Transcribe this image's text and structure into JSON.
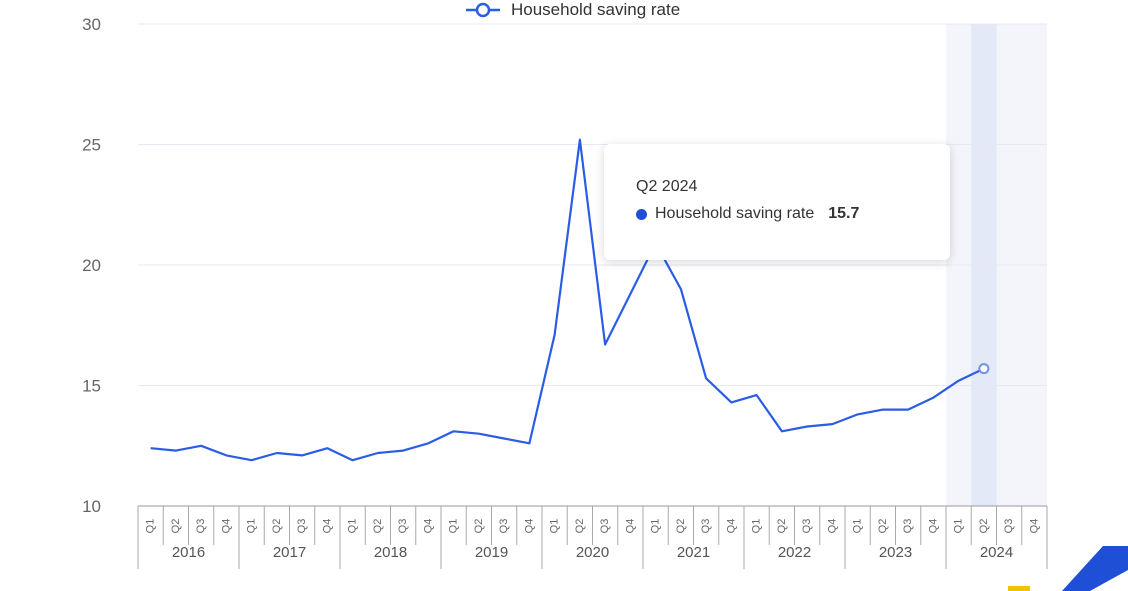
{
  "chart_data": {
    "type": "line",
    "title": "",
    "xlabel": "",
    "ylabel": "",
    "ylim": [
      10,
      30
    ],
    "yticks": [
      10,
      15,
      20,
      25,
      30
    ],
    "grid": true,
    "legend_position": "top",
    "quarter_labels": [
      "Q1",
      "Q2",
      "Q3",
      "Q4"
    ],
    "years": [
      "2016",
      "2017",
      "2018",
      "2019",
      "2020",
      "2021",
      "2022",
      "2023",
      "2024"
    ],
    "x": [
      "Q1 2016",
      "Q2 2016",
      "Q3 2016",
      "Q4 2016",
      "Q1 2017",
      "Q2 2017",
      "Q3 2017",
      "Q4 2017",
      "Q1 2018",
      "Q2 2018",
      "Q3 2018",
      "Q4 2018",
      "Q1 2019",
      "Q2 2019",
      "Q3 2019",
      "Q4 2019",
      "Q1 2020",
      "Q2 2020",
      "Q3 2020",
      "Q4 2020",
      "Q1 2021",
      "Q2 2021",
      "Q3 2021",
      "Q4 2021",
      "Q1 2022",
      "Q2 2022",
      "Q3 2022",
      "Q4 2022",
      "Q1 2023",
      "Q2 2023",
      "Q3 2023",
      "Q4 2023",
      "Q1 2024",
      "Q2 2024"
    ],
    "series": [
      {
        "name": "Household saving rate",
        "color": "#2b5ce6",
        "values": [
          12.4,
          12.3,
          12.5,
          12.1,
          11.9,
          12.2,
          12.1,
          12.4,
          11.9,
          12.2,
          12.3,
          12.6,
          13.1,
          13.0,
          12.8,
          12.6,
          17.1,
          25.2,
          16.7,
          18.8,
          20.9,
          19.0,
          15.3,
          14.3,
          14.6,
          13.1,
          13.3,
          13.4,
          13.8,
          14.0,
          14.0,
          14.5,
          15.2,
          15.7
        ]
      }
    ],
    "highlight": {
      "year": "2024",
      "quarter": "Q2"
    },
    "tooltip": {
      "title": "Q2 2024",
      "series_name": "Household saving rate",
      "value": "15.7"
    }
  }
}
